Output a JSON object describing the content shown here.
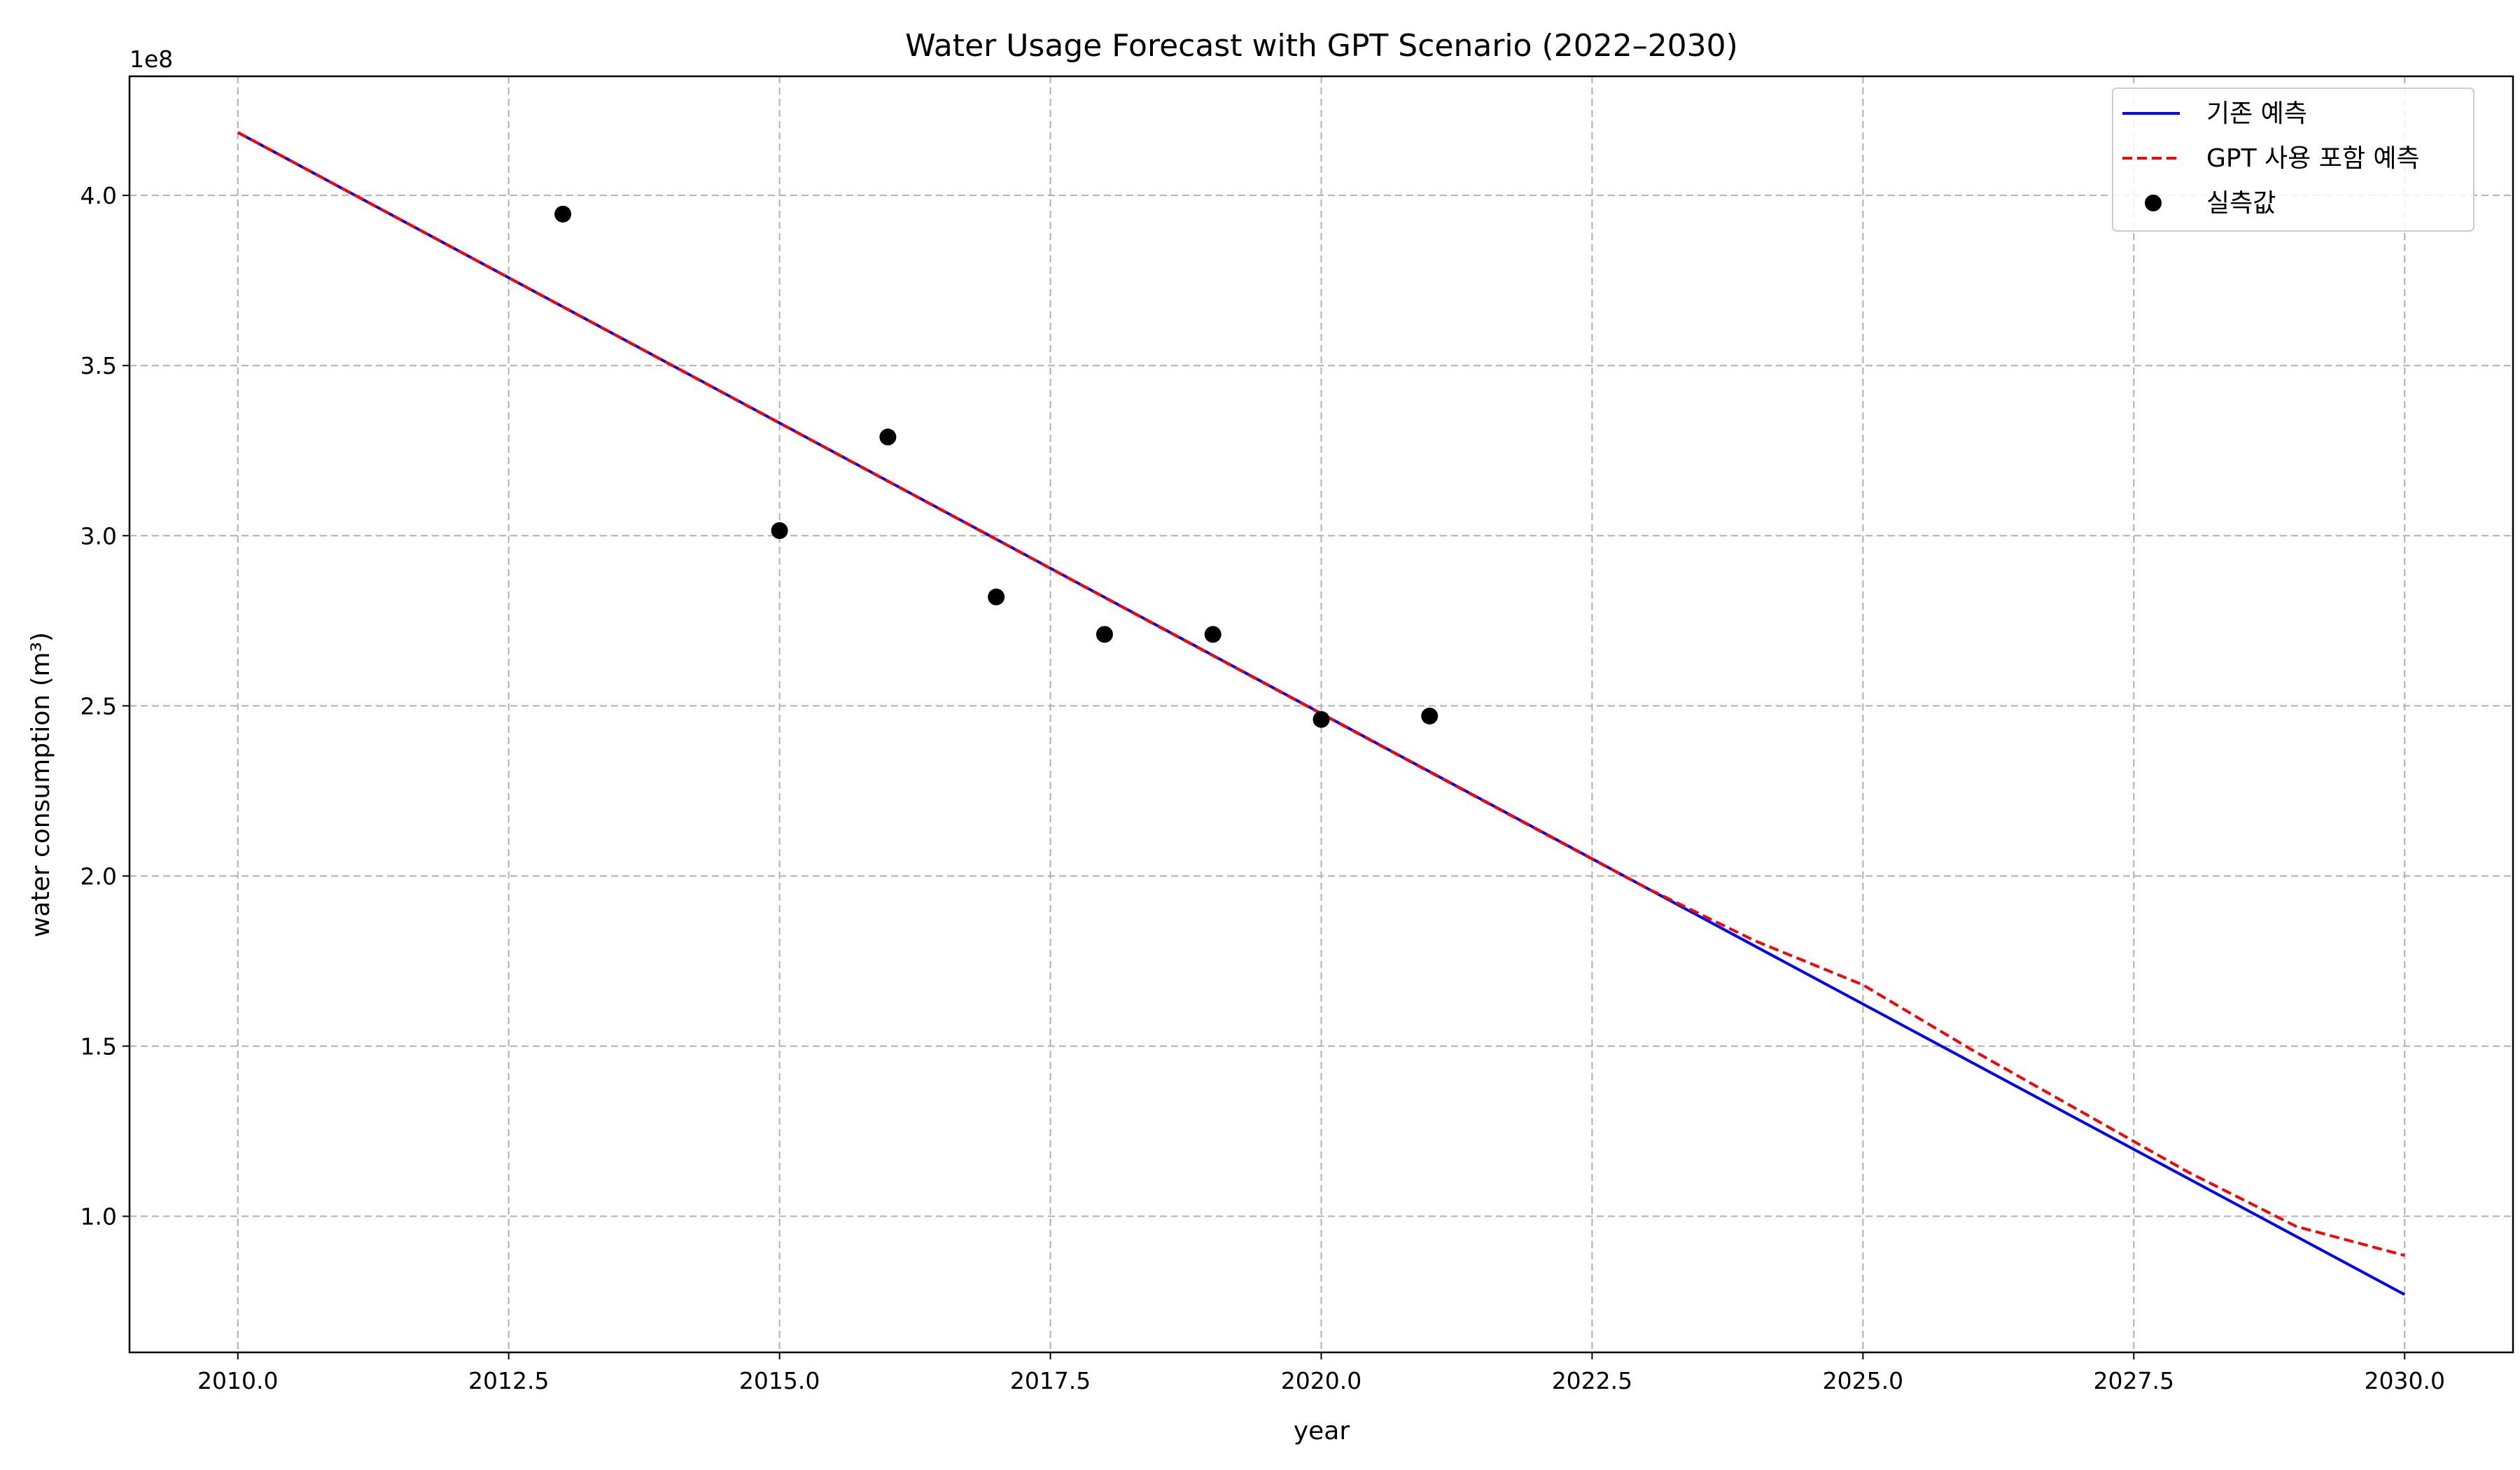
{
  "chart_data": {
    "type": "line",
    "title": "Water Usage Forecast with GPT Scenario (2022–2030)",
    "xlabel": "year",
    "ylabel": "water consumption (m³)",
    "y_offset_text": "1e8",
    "y_scale_factor": 100000000,
    "xlim": [
      2009,
      2031
    ],
    "ylim": [
      0.6,
      4.35
    ],
    "x_ticks": [
      2010.0,
      2012.5,
      2015.0,
      2017.5,
      2020.0,
      2022.5,
      2025.0,
      2027.5,
      2030.0
    ],
    "x_tick_labels": [
      "2010.0",
      "2012.5",
      "2015.0",
      "2017.5",
      "2020.0",
      "2022.5",
      "2025.0",
      "2027.5",
      "2030.0"
    ],
    "y_ticks": [
      1.0,
      1.5,
      2.0,
      2.5,
      3.0,
      3.5,
      4.0
    ],
    "y_tick_labels": [
      "1.0",
      "1.5",
      "2.0",
      "2.5",
      "3.0",
      "3.5",
      "4.0"
    ],
    "grid": true,
    "legend_position": "top-right",
    "series": [
      {
        "name": "기존 예측",
        "kind": "line",
        "style": "solid",
        "color": "#0000ff",
        "x": [
          2010,
          2030
        ],
        "y": [
          4.185,
          0.77
        ]
      },
      {
        "name": "GPT 사용 포함 예측",
        "kind": "line",
        "style": "dashed",
        "color": "#ff0000",
        "x": [
          2010,
          2022,
          2023,
          2024,
          2025,
          2026,
          2027,
          2028,
          2029,
          2030
        ],
        "y": [
          4.185,
          2.135,
          1.965,
          1.81,
          1.68,
          1.49,
          1.31,
          1.13,
          0.97,
          0.885
        ]
      },
      {
        "name": "실측값",
        "kind": "scatter",
        "color": "#000000",
        "x": [
          2013,
          2015,
          2016,
          2017,
          2018,
          2019,
          2020,
          2021
        ],
        "y": [
          3.945,
          3.015,
          3.29,
          2.82,
          2.71,
          2.71,
          2.46,
          2.47
        ]
      }
    ]
  }
}
